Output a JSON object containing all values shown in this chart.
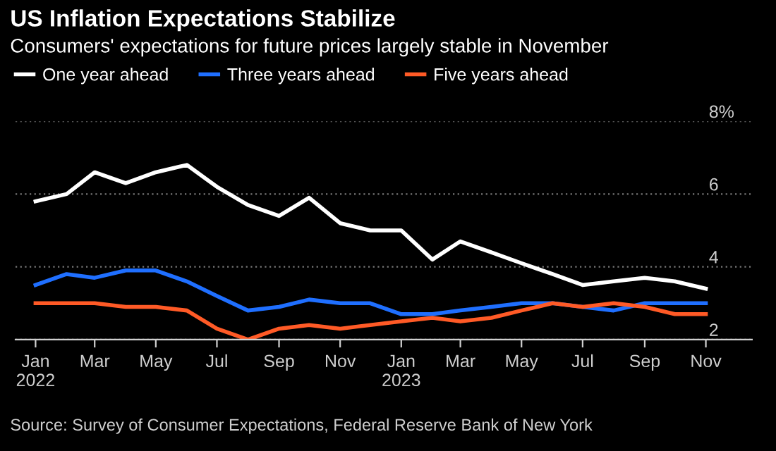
{
  "chart_data": {
    "type": "line",
    "title": "US Inflation Expectations Stabilize",
    "subtitle": "Consumers' expectations for future prices largely stable in November",
    "x": [
      "2022-01",
      "2022-02",
      "2022-03",
      "2022-04",
      "2022-05",
      "2022-06",
      "2022-07",
      "2022-08",
      "2022-09",
      "2022-10",
      "2022-11",
      "2022-12",
      "2023-01",
      "2023-02",
      "2023-03",
      "2023-04",
      "2023-05",
      "2023-06",
      "2023-07",
      "2023-08",
      "2023-09",
      "2023-10",
      "2023-11"
    ],
    "series": [
      {
        "name": "One year ahead",
        "color": "#ffffff",
        "values": [
          5.8,
          6.0,
          6.6,
          6.3,
          6.6,
          6.8,
          6.2,
          5.7,
          5.4,
          5.9,
          5.2,
          5.0,
          5.0,
          4.2,
          4.7,
          4.4,
          4.1,
          3.8,
          3.5,
          3.6,
          3.7,
          3.6,
          3.4
        ]
      },
      {
        "name": "Three years ahead",
        "color": "#1f6fff",
        "values": [
          3.5,
          3.8,
          3.7,
          3.9,
          3.9,
          3.6,
          3.2,
          2.8,
          2.9,
          3.1,
          3.0,
          3.0,
          2.7,
          2.7,
          2.8,
          2.9,
          3.0,
          3.0,
          2.9,
          2.8,
          3.0,
          3.0,
          3.0
        ]
      },
      {
        "name": "Five years ahead",
        "color": "#ff5a26",
        "values": [
          3.0,
          3.0,
          3.0,
          2.9,
          2.9,
          2.8,
          2.3,
          2.0,
          2.3,
          2.4,
          2.3,
          2.4,
          2.5,
          2.6,
          2.5,
          2.6,
          2.8,
          3.0,
          2.9,
          3.0,
          2.9,
          2.7,
          2.7
        ]
      }
    ],
    "xlim": [
      "2021-12-12",
      "2023-12-17"
    ],
    "xticks": [
      {
        "value": "2022-01",
        "label": "Jan\n2022"
      },
      {
        "value": "2022-03",
        "label": "Mar"
      },
      {
        "value": "2022-05",
        "label": "May"
      },
      {
        "value": "2022-07",
        "label": "Jul"
      },
      {
        "value": "2022-09",
        "label": "Sep"
      },
      {
        "value": "2022-11",
        "label": "Nov"
      },
      {
        "value": "2023-01",
        "label": "Jan\n2023"
      },
      {
        "value": "2023-03",
        "label": "Mar"
      },
      {
        "value": "2023-05",
        "label": "May"
      },
      {
        "value": "2023-07",
        "label": "Jul"
      },
      {
        "value": "2023-09",
        "label": "Sep"
      },
      {
        "value": "2023-11",
        "label": "Nov"
      }
    ],
    "ylim": [
      2,
      8
    ],
    "yticks": [
      2,
      4,
      6,
      {
        "value": 8,
        "label": "8%"
      }
    ],
    "grid": "y",
    "legend": "top left",
    "annotations": [
      "Source: Survey of Consumer Expectations, Federal Reserve Bank of New York"
    ]
  }
}
